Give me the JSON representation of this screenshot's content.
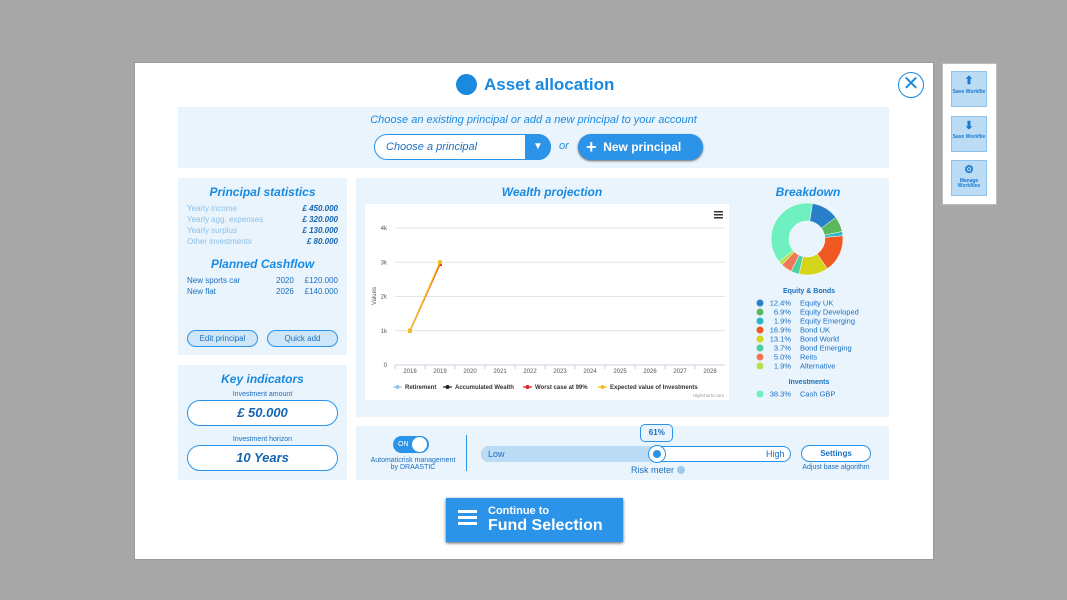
{
  "header": {
    "title": "Asset allocation"
  },
  "side_buttons": [
    "Save Workfile",
    "Save Workfile",
    "Manage Workfiles"
  ],
  "principal_select": {
    "prompt": "Choose an existing principal or add a new principal to your account",
    "placeholder": "Choose a principal",
    "or": "or",
    "new_button": "New principal"
  },
  "principal_statistics": {
    "title": "Principal statistics",
    "rows": [
      [
        "Yearly income",
        "£ 450.000"
      ],
      [
        "Yearly agg. expenses",
        "£ 320.000"
      ],
      [
        "Yearly surplus",
        "£ 130.000"
      ],
      [
        "Other investments",
        "£ 80.000"
      ]
    ]
  },
  "planned_cashflow": {
    "title": "Planned Cashflow",
    "rows": [
      [
        "New sports car",
        "2020",
        "£120.000"
      ],
      [
        "New flat",
        "2026",
        "£140.000"
      ]
    ]
  },
  "principal_buttons": [
    "Edit principal",
    "Quick add"
  ],
  "key_indicators": {
    "title": "Key indicators",
    "items": [
      {
        "label": "Investment amount",
        "value": "£ 50.000"
      },
      {
        "label": "Investment horizon",
        "value": "10 Years"
      }
    ]
  },
  "wealth_projection": {
    "type": "line",
    "title": "Wealth projection",
    "y_label": "Values",
    "categories": [
      "2018",
      "2019",
      "2020",
      "2021",
      "2022",
      "2023",
      "2024",
      "2025",
      "2026",
      "2027",
      "2028"
    ],
    "ylim": [
      0,
      4000
    ],
    "yticks": [
      0,
      {
        "value": 1000,
        "label": "1k"
      },
      {
        "value": 2000,
        "label": "2k"
      },
      {
        "value": 3000,
        "label": "3k"
      },
      {
        "value": 4000,
        "label": "4k"
      }
    ],
    "grid": true,
    "series": [
      {
        "name": "Retirement",
        "color": "#90c8e8",
        "values": [
          null,
          null,
          null,
          null,
          null,
          null,
          null,
          null,
          null,
          null,
          null
        ]
      },
      {
        "name": "Accumulated Wealth",
        "color": "#222222",
        "values": [
          null,
          null,
          null,
          null,
          null,
          null,
          null,
          null,
          null,
          null,
          null
        ]
      },
      {
        "name": "Worst case at 99%",
        "color": "#e02020",
        "values": [
          1000,
          2950,
          null,
          null,
          null,
          null,
          null,
          null,
          null,
          null,
          null
        ]
      },
      {
        "name": "Expected value of Investments",
        "color": "#f0c020",
        "values": [
          1000,
          3000,
          null,
          null,
          null,
          null,
          null,
          null,
          null,
          null,
          null
        ]
      }
    ],
    "credits": "Highcharts.com"
  },
  "breakdown": {
    "type": "pie",
    "title": "Breakdown",
    "groups": [
      {
        "name": "Equity & Bonds",
        "categories": [
          "Equity UK",
          "Equity Developed",
          "Equity Emerging",
          "Bond UK",
          "Bond World",
          "Bond Emerging",
          "Reits",
          "Alternative"
        ],
        "values": [
          12.4,
          6.9,
          1.9,
          16.9,
          13.1,
          3.7,
          5.0,
          1.9
        ],
        "value_labels": [
          "12.4%",
          "6.9%",
          "1.9%",
          "16.9%",
          "13.1%",
          "3.7%",
          "5.0%",
          "1.9%"
        ],
        "colors": [
          "#2a7fc9",
          "#5cb85c",
          "#29b6c8",
          "#f05a22",
          "#d4d41a",
          "#4cd0a0",
          "#f07858",
          "#b8e04a"
        ]
      },
      {
        "name": "Investments",
        "categories": [
          "Cash GBP"
        ],
        "values": [
          38.3
        ],
        "value_labels": [
          "38.3%"
        ],
        "colors": [
          "#6ef0c0"
        ]
      }
    ]
  },
  "risk": {
    "toggle": "ON",
    "auto_label": "Automaticrisk management by DRAASTIC",
    "low": "Low",
    "high": "High",
    "value": 61,
    "value_label": "61%",
    "meter_label": "Risk meter",
    "settings": "Settings",
    "settings_note": "Adjust base algorithm"
  },
  "continue": {
    "line1": "Continue to",
    "line2": "Fund Selection"
  }
}
